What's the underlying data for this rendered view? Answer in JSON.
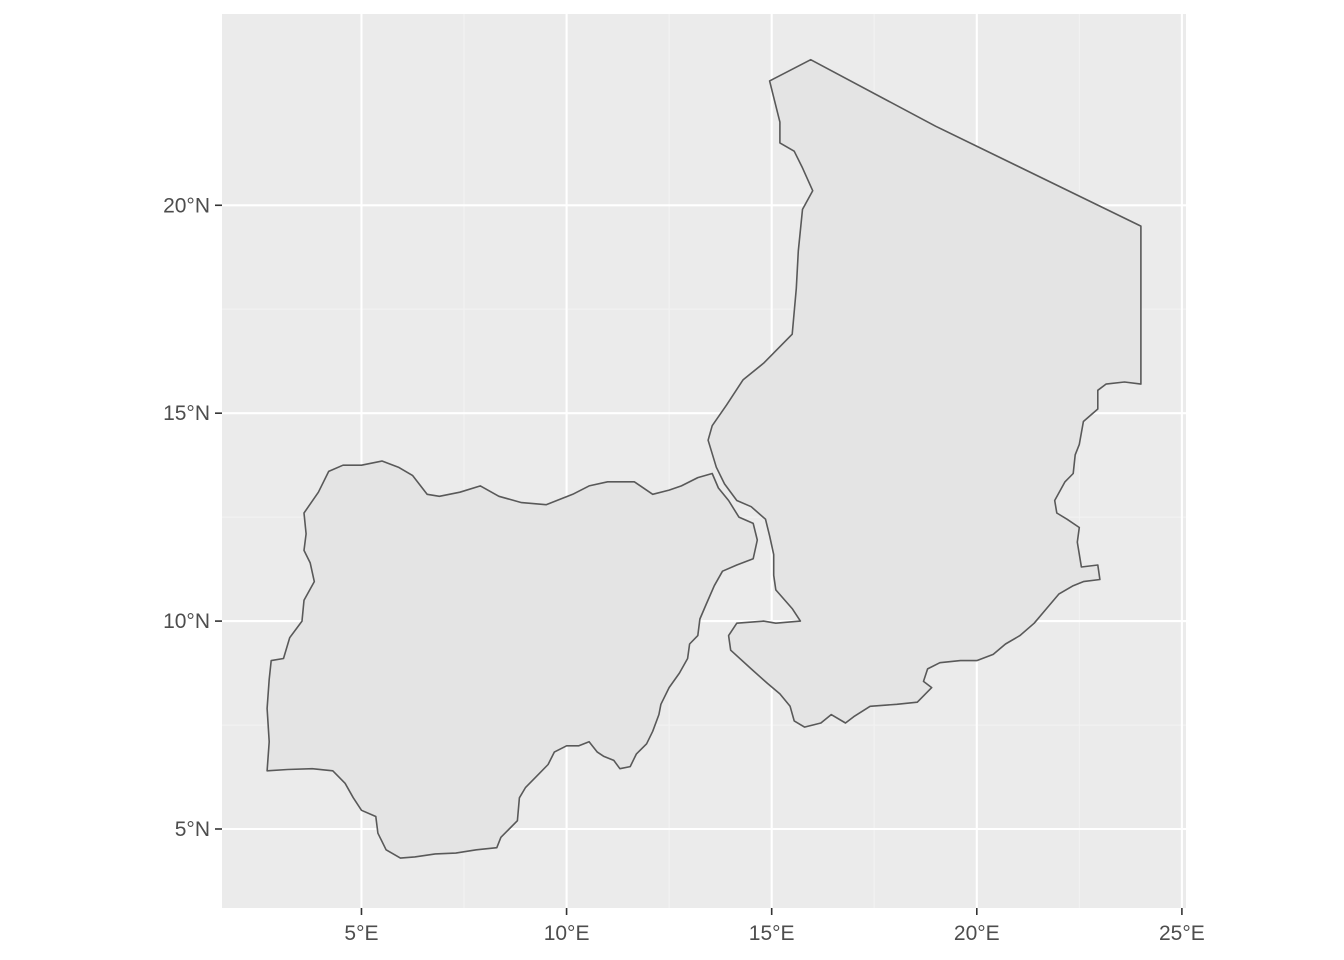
{
  "map": {
    "type": "map",
    "projection": "equirectangular (lon/lat degrees)",
    "xlim": [
      1.6,
      25.1
    ],
    "ylim": [
      3.1,
      24.6
    ],
    "x_ticks": [
      {
        "value": 5,
        "label": "5°E"
      },
      {
        "value": 10,
        "label": "10°E"
      },
      {
        "value": 15,
        "label": "15°E"
      },
      {
        "value": 20,
        "label": "20°E"
      },
      {
        "value": 25,
        "label": "25°E"
      }
    ],
    "y_ticks": [
      {
        "value": 5,
        "label": "5°N"
      },
      {
        "value": 10,
        "label": "10°N"
      },
      {
        "value": 15,
        "label": "15°N"
      },
      {
        "value": 20,
        "label": "20°N"
      }
    ],
    "colors": {
      "panel_background": "#ebebeb",
      "grid_major": "#ffffff",
      "grid_minor": "#f2f2f2",
      "polygon_fill": "#e4e4e4",
      "polygon_stroke": "#595959",
      "tick_mark": "#333333",
      "tick_label": "#4d4d4d"
    },
    "regions": [
      {
        "id": "nigeria",
        "coords": [
          [
            2.7,
            6.4
          ],
          [
            3.2,
            6.43
          ],
          [
            3.8,
            6.45
          ],
          [
            4.3,
            6.4
          ],
          [
            4.6,
            6.1
          ],
          [
            4.8,
            5.75
          ],
          [
            5.0,
            5.45
          ],
          [
            5.35,
            5.3
          ],
          [
            5.4,
            4.9
          ],
          [
            5.6,
            4.5
          ],
          [
            5.95,
            4.3
          ],
          [
            6.3,
            4.33
          ],
          [
            6.8,
            4.4
          ],
          [
            7.3,
            4.42
          ],
          [
            7.8,
            4.5
          ],
          [
            8.3,
            4.55
          ],
          [
            8.4,
            4.8
          ],
          [
            8.55,
            4.95
          ],
          [
            8.8,
            5.2
          ],
          [
            8.85,
            5.75
          ],
          [
            9.0,
            6.0
          ],
          [
            9.3,
            6.3
          ],
          [
            9.55,
            6.55
          ],
          [
            9.7,
            6.85
          ],
          [
            10.0,
            7.0
          ],
          [
            10.3,
            7.0
          ],
          [
            10.55,
            7.1
          ],
          [
            10.75,
            6.85
          ],
          [
            10.9,
            6.75
          ],
          [
            11.15,
            6.65
          ],
          [
            11.3,
            6.45
          ],
          [
            11.55,
            6.5
          ],
          [
            11.7,
            6.8
          ],
          [
            11.95,
            7.05
          ],
          [
            12.1,
            7.35
          ],
          [
            12.25,
            7.75
          ],
          [
            12.3,
            8.0
          ],
          [
            12.5,
            8.4
          ],
          [
            12.75,
            8.75
          ],
          [
            12.95,
            9.1
          ],
          [
            13.0,
            9.45
          ],
          [
            13.2,
            9.65
          ],
          [
            13.25,
            10.05
          ],
          [
            13.4,
            10.4
          ],
          [
            13.6,
            10.85
          ],
          [
            13.8,
            11.2
          ],
          [
            14.15,
            11.35
          ],
          [
            14.55,
            11.5
          ],
          [
            14.65,
            11.95
          ],
          [
            14.55,
            12.35
          ],
          [
            14.2,
            12.5
          ],
          [
            13.95,
            12.9
          ],
          [
            13.7,
            13.2
          ],
          [
            13.55,
            13.55
          ],
          [
            13.2,
            13.45
          ],
          [
            12.8,
            13.25
          ],
          [
            12.5,
            13.15
          ],
          [
            12.1,
            13.05
          ],
          [
            11.65,
            13.35
          ],
          [
            11.0,
            13.35
          ],
          [
            10.55,
            13.25
          ],
          [
            10.15,
            13.05
          ],
          [
            9.5,
            12.8
          ],
          [
            8.9,
            12.85
          ],
          [
            8.35,
            13.0
          ],
          [
            7.9,
            13.25
          ],
          [
            7.4,
            13.1
          ],
          [
            6.9,
            13.0
          ],
          [
            6.6,
            13.05
          ],
          [
            6.25,
            13.5
          ],
          [
            5.9,
            13.7
          ],
          [
            5.5,
            13.85
          ],
          [
            5.0,
            13.75
          ],
          [
            4.55,
            13.75
          ],
          [
            4.2,
            13.6
          ],
          [
            3.95,
            13.1
          ],
          [
            3.6,
            12.6
          ],
          [
            3.65,
            12.1
          ],
          [
            3.6,
            11.7
          ],
          [
            3.75,
            11.4
          ],
          [
            3.85,
            10.95
          ],
          [
            3.6,
            10.5
          ],
          [
            3.55,
            10.0
          ],
          [
            3.25,
            9.6
          ],
          [
            3.1,
            9.1
          ],
          [
            2.8,
            9.05
          ],
          [
            2.75,
            8.6
          ],
          [
            2.7,
            7.9
          ],
          [
            2.75,
            7.1
          ],
          [
            2.7,
            6.4
          ]
        ]
      },
      {
        "id": "chad",
        "coords": [
          [
            14.95,
            22.99
          ],
          [
            15.95,
            23.5
          ],
          [
            19.0,
            21.9
          ],
          [
            24.0,
            19.5
          ],
          [
            24.0,
            15.7
          ],
          [
            23.6,
            15.75
          ],
          [
            23.15,
            15.7
          ],
          [
            22.95,
            15.55
          ],
          [
            22.95,
            15.1
          ],
          [
            22.6,
            14.8
          ],
          [
            22.5,
            14.25
          ],
          [
            22.4,
            14.0
          ],
          [
            22.35,
            13.55
          ],
          [
            22.15,
            13.35
          ],
          [
            21.9,
            12.9
          ],
          [
            21.95,
            12.6
          ],
          [
            22.2,
            12.45
          ],
          [
            22.5,
            12.25
          ],
          [
            22.45,
            11.9
          ],
          [
            22.55,
            11.3
          ],
          [
            22.95,
            11.35
          ],
          [
            23.0,
            11.0
          ],
          [
            22.6,
            10.95
          ],
          [
            22.35,
            10.85
          ],
          [
            22.0,
            10.65
          ],
          [
            21.7,
            10.3
          ],
          [
            21.4,
            9.95
          ],
          [
            21.05,
            9.65
          ],
          [
            20.7,
            9.45
          ],
          [
            20.4,
            9.2
          ],
          [
            20.0,
            9.05
          ],
          [
            19.6,
            9.05
          ],
          [
            19.1,
            9.0
          ],
          [
            18.8,
            8.85
          ],
          [
            18.7,
            8.55
          ],
          [
            18.9,
            8.4
          ],
          [
            18.55,
            8.05
          ],
          [
            18.05,
            8.0
          ],
          [
            17.4,
            7.95
          ],
          [
            17.0,
            7.7
          ],
          [
            16.8,
            7.55
          ],
          [
            16.45,
            7.75
          ],
          [
            16.2,
            7.55
          ],
          [
            15.8,
            7.45
          ],
          [
            15.55,
            7.6
          ],
          [
            15.45,
            7.95
          ],
          [
            15.2,
            8.25
          ],
          [
            14.9,
            8.5
          ],
          [
            14.5,
            8.85
          ],
          [
            14.0,
            9.3
          ],
          [
            13.95,
            9.65
          ],
          [
            14.15,
            9.95
          ],
          [
            14.8,
            10.0
          ],
          [
            15.1,
            9.95
          ],
          [
            15.7,
            10.0
          ],
          [
            15.5,
            10.3
          ],
          [
            15.1,
            10.75
          ],
          [
            15.05,
            11.1
          ],
          [
            15.05,
            11.6
          ],
          [
            14.95,
            12.05
          ],
          [
            14.85,
            12.45
          ],
          [
            14.5,
            12.75
          ],
          [
            14.15,
            12.9
          ],
          [
            13.85,
            13.3
          ],
          [
            13.65,
            13.7
          ],
          [
            13.45,
            14.35
          ],
          [
            13.55,
            14.7
          ],
          [
            13.9,
            15.2
          ],
          [
            14.3,
            15.8
          ],
          [
            14.8,
            16.2
          ],
          [
            15.5,
            16.9
          ],
          [
            15.6,
            18.0
          ],
          [
            15.65,
            18.9
          ],
          [
            15.75,
            19.9
          ],
          [
            16.0,
            20.35
          ],
          [
            15.75,
            20.9
          ],
          [
            15.55,
            21.3
          ],
          [
            15.2,
            21.5
          ],
          [
            15.2,
            22.0
          ],
          [
            14.95,
            22.99
          ]
        ]
      }
    ]
  }
}
